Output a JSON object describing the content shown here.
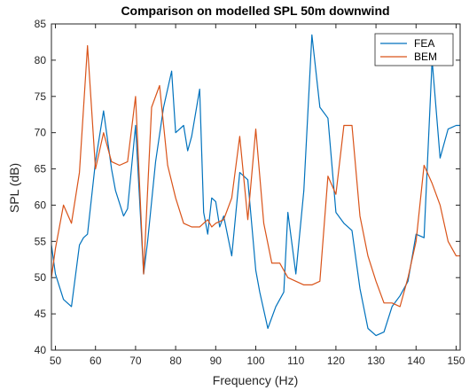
{
  "chart_data": {
    "type": "line",
    "title": "Comparison on modelled SPL 50m downwind",
    "xlabel": "Frequency (Hz)",
    "ylabel": "SPL (dB)",
    "xlim": [
      49,
      151
    ],
    "ylim": [
      40,
      85
    ],
    "xticks": [
      50,
      60,
      70,
      80,
      90,
      100,
      110,
      120,
      130,
      140,
      150
    ],
    "yticks": [
      40,
      45,
      50,
      55,
      60,
      65,
      70,
      75,
      80,
      85
    ],
    "grid": false,
    "legend_position": "top-right",
    "series": [
      {
        "name": "FEA",
        "color": "#0072BD",
        "x": [
          49,
          50,
          52,
          54,
          56,
          57,
          58,
          60,
          62,
          64,
          65,
          67,
          68,
          70,
          72,
          73,
          75,
          77,
          79,
          80,
          82,
          83,
          84,
          86,
          87,
          88,
          89,
          90,
          91,
          92,
          94,
          96,
          98,
          100,
          101,
          103,
          105,
          107,
          108,
          110,
          112,
          114,
          116,
          118,
          120,
          122,
          124,
          126,
          128,
          130,
          132,
          134,
          136,
          138,
          140,
          142,
          144,
          146,
          148,
          150,
          151
        ],
        "y": [
          54.5,
          50.5,
          47,
          46,
          54.5,
          55.5,
          56,
          66,
          73,
          65,
          62,
          58.5,
          59.5,
          71,
          50.5,
          55,
          66,
          73.5,
          78.5,
          70,
          71,
          67.5,
          69.5,
          76,
          59,
          56,
          61,
          60.5,
          57,
          58.5,
          53,
          64.5,
          63.5,
          51,
          48,
          43,
          46,
          48,
          59,
          50.5,
          62,
          83.5,
          73.5,
          72,
          59,
          57.5,
          56.5,
          48.5,
          43,
          42,
          42.5,
          46,
          47.5,
          49.5,
          56,
          55.5,
          80,
          66.5,
          70.5,
          71,
          71
        ]
      },
      {
        "name": "BEM",
        "color": "#D95319",
        "x": [
          49,
          50,
          52,
          54,
          56,
          58,
          60,
          62,
          64,
          66,
          68,
          70,
          72,
          74,
          76,
          78,
          80,
          82,
          84,
          86,
          88,
          89,
          90,
          92,
          94,
          96,
          98,
          100,
          102,
          104,
          106,
          108,
          110,
          112,
          114,
          116,
          118,
          120,
          122,
          124,
          126,
          128,
          130,
          132,
          134,
          136,
          138,
          140,
          142,
          144,
          146,
          148,
          150,
          151
        ],
        "y": [
          50,
          54,
          60,
          57.5,
          64.5,
          82,
          65,
          70,
          66,
          65.5,
          66,
          75,
          50.5,
          73.5,
          76.5,
          65.5,
          61,
          57.5,
          57,
          57,
          58,
          57,
          57.5,
          58,
          61,
          69.5,
          58,
          70.5,
          57.5,
          52,
          52,
          50,
          49.5,
          49,
          49,
          49.5,
          64,
          61.5,
          71,
          71,
          58.5,
          53,
          49.5,
          46.5,
          46.5,
          46,
          50,
          55,
          65.5,
          63,
          60,
          55,
          53,
          53
        ]
      }
    ]
  }
}
